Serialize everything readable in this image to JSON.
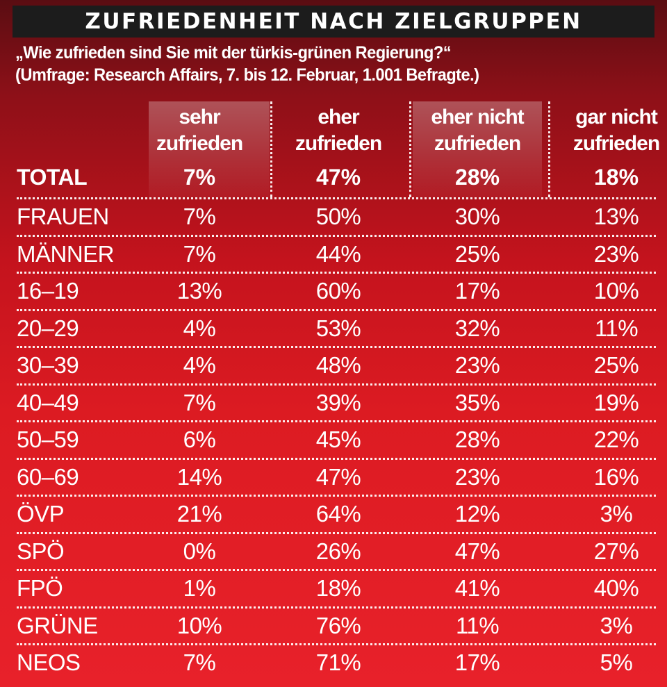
{
  "title": "ZUFRIEDENHEIT NACH ZIELGRUPPEN",
  "subtitle": {
    "line1": "„Wie zufrieden sind Sie mit der türkis-grünen Regierung?“",
    "line2": "(Umfrage: Research Affairs, 7. bis 12. Februar, 1.001 Befragte.)"
  },
  "colors": {
    "bar": "#1c1c1c",
    "background_top": "#5a0d12",
    "background_bottom": "#e8212a",
    "text": "#ffffff"
  },
  "chart_data": {
    "type": "table",
    "title": "ZUFRIEDENHEIT NACH ZIELGRUPPEN",
    "columns": [
      {
        "line1": "sehr",
        "line2": "zufrieden"
      },
      {
        "line1": "eher",
        "line2": "zufrieden"
      },
      {
        "line1": "eher nicht",
        "line2": "zufrieden"
      },
      {
        "line1": "gar nicht",
        "line2": "zufrieden"
      }
    ],
    "total": {
      "label": "TOTAL",
      "values": [
        "7%",
        "47%",
        "28%",
        "18%"
      ]
    },
    "rows": [
      {
        "label": "FRAUEN",
        "values": [
          "7%",
          "50%",
          "30%",
          "13%"
        ]
      },
      {
        "label": "MÄNNER",
        "values": [
          "7%",
          "44%",
          "25%",
          "23%"
        ]
      },
      {
        "label": "16–19",
        "values": [
          "13%",
          "60%",
          "17%",
          "10%"
        ]
      },
      {
        "label": "20–29",
        "values": [
          "4%",
          "53%",
          "32%",
          "11%"
        ]
      },
      {
        "label": "30–39",
        "values": [
          "4%",
          "48%",
          "23%",
          "25%"
        ]
      },
      {
        "label": "40–49",
        "values": [
          "7%",
          "39%",
          "35%",
          "19%"
        ]
      },
      {
        "label": "50–59",
        "values": [
          "6%",
          "45%",
          "28%",
          "22%"
        ]
      },
      {
        "label": "60–69",
        "values": [
          "14%",
          "47%",
          "23%",
          "16%"
        ]
      },
      {
        "label": "ÖVP",
        "values": [
          "21%",
          "64%",
          "12%",
          "3%"
        ]
      },
      {
        "label": "SPÖ",
        "values": [
          "0%",
          "26%",
          "47%",
          "27%"
        ]
      },
      {
        "label": "FPÖ",
        "values": [
          "1%",
          "18%",
          "41%",
          "40%"
        ]
      },
      {
        "label": "GRÜNE",
        "values": [
          "10%",
          "76%",
          "11%",
          "3%"
        ]
      },
      {
        "label": "NEOS",
        "values": [
          "7%",
          "71%",
          "17%",
          "5%"
        ]
      }
    ]
  }
}
